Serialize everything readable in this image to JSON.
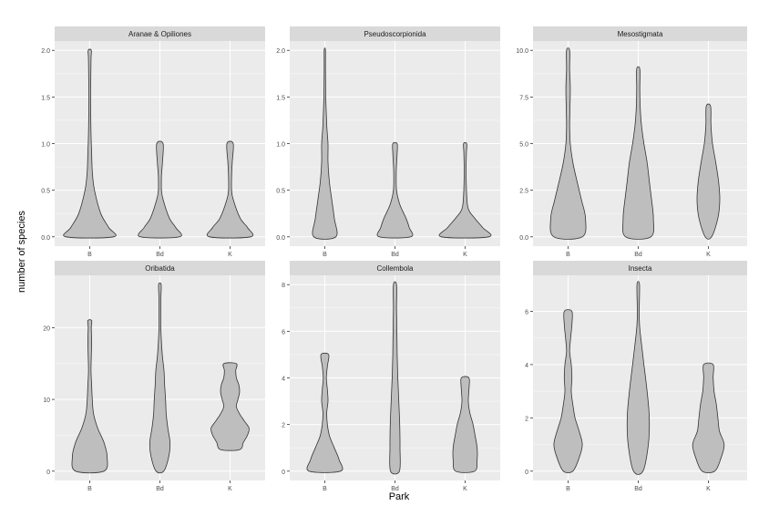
{
  "xlabel": "Park",
  "ylabel": "number of species",
  "colors": {
    "panel_bg": "#ebebeb",
    "strip_bg": "#d9d9d9",
    "grid": "#ffffff",
    "violin_fill": "#bebebe",
    "violin_stroke": "#333333",
    "tick_text": "#4d4d4d"
  },
  "chart_data": [
    {
      "type": "violin",
      "title": "Aranae & Opiliones",
      "categories": [
        "B",
        "Bd",
        "K"
      ],
      "ylim": [
        -0.1,
        2.1
      ],
      "yticks": [
        0,
        0.5,
        1,
        1.5,
        2
      ],
      "ytick_labels": [
        "0.0",
        "0.5",
        "1.0",
        "1.5",
        "2.0"
      ],
      "series": [
        {
          "name": "B",
          "profile": [
            [
              0,
              0.75
            ],
            [
              0.1,
              0.6
            ],
            [
              0.25,
              0.35
            ],
            [
              0.5,
              0.15
            ],
            [
              0.7,
              0.08
            ],
            [
              0.9,
              0.06
            ],
            [
              1.1,
              0.04
            ],
            [
              1.5,
              0.03
            ],
            [
              1.9,
              0.04
            ],
            [
              2,
              0.05
            ]
          ]
        },
        {
          "name": "Bd",
          "profile": [
            [
              0,
              0.62
            ],
            [
              0.1,
              0.5
            ],
            [
              0.2,
              0.3
            ],
            [
              0.4,
              0.1
            ],
            [
              0.5,
              0.05
            ],
            [
              0.65,
              0.05
            ],
            [
              0.8,
              0.08
            ],
            [
              1,
              0.1
            ]
          ]
        },
        {
          "name": "K",
          "profile": [
            [
              0,
              0.65
            ],
            [
              0.1,
              0.55
            ],
            [
              0.2,
              0.32
            ],
            [
              0.4,
              0.1
            ],
            [
              0.5,
              0.05
            ],
            [
              0.65,
              0.05
            ],
            [
              0.8,
              0.07
            ],
            [
              1,
              0.1
            ]
          ]
        }
      ]
    },
    {
      "type": "violin",
      "title": "Pseudoscorpionida",
      "categories": [
        "B",
        "Bd",
        "K"
      ],
      "ylim": [
        -0.1,
        2.1
      ],
      "yticks": [
        0,
        0.5,
        1,
        1.5,
        2
      ],
      "ytick_labels": [
        "0.0",
        "0.5",
        "1.0",
        "1.5",
        "2.0"
      ],
      "series": [
        {
          "name": "B",
          "profile": [
            [
              0,
              0.35
            ],
            [
              0.2,
              0.3
            ],
            [
              0.4,
              0.22
            ],
            [
              0.6,
              0.14
            ],
            [
              0.8,
              0.1
            ],
            [
              1,
              0.1
            ],
            [
              1.2,
              0.06
            ],
            [
              1.5,
              0.03
            ],
            [
              1.8,
              0.02
            ],
            [
              2,
              0.02
            ]
          ]
        },
        {
          "name": "Bd",
          "profile": [
            [
              0,
              0.5
            ],
            [
              0.1,
              0.45
            ],
            [
              0.2,
              0.35
            ],
            [
              0.35,
              0.15
            ],
            [
              0.5,
              0.05
            ],
            [
              0.7,
              0.04
            ],
            [
              0.9,
              0.07
            ],
            [
              1,
              0.07
            ]
          ]
        },
        {
          "name": "K",
          "profile": [
            [
              0,
              0.75
            ],
            [
              0.1,
              0.55
            ],
            [
              0.2,
              0.3
            ],
            [
              0.3,
              0.1
            ],
            [
              0.45,
              0.05
            ],
            [
              0.7,
              0.03
            ],
            [
              0.9,
              0.04
            ],
            [
              1,
              0.05
            ]
          ]
        }
      ]
    },
    {
      "type": "violin",
      "title": "Mesostigmata",
      "categories": [
        "B",
        "Bd",
        "K"
      ],
      "ylim": [
        -0.5,
        10.5
      ],
      "yticks": [
        0,
        2.5,
        5,
        7.5,
        10
      ],
      "ytick_labels": [
        "0.0",
        "2.5",
        "5.0",
        "7.5",
        "10.0"
      ],
      "series": [
        {
          "name": "B",
          "profile": [
            [
              0,
              0.45
            ],
            [
              1,
              0.55
            ],
            [
              2,
              0.42
            ],
            [
              3,
              0.28
            ],
            [
              4,
              0.15
            ],
            [
              5,
              0.07
            ],
            [
              6,
              0.05
            ],
            [
              7,
              0.06
            ],
            [
              8,
              0.07
            ],
            [
              9,
              0.05
            ],
            [
              10,
              0.05
            ]
          ]
        },
        {
          "name": "Bd",
          "profile": [
            [
              0,
              0.4
            ],
            [
              1,
              0.48
            ],
            [
              2,
              0.42
            ],
            [
              3,
              0.35
            ],
            [
              4,
              0.28
            ],
            [
              5,
              0.18
            ],
            [
              6,
              0.1
            ],
            [
              7,
              0.06
            ],
            [
              8,
              0.05
            ],
            [
              9,
              0.05
            ]
          ]
        },
        {
          "name": "K",
          "profile": [
            [
              0,
              0.1
            ],
            [
              1,
              0.3
            ],
            [
              2,
              0.36
            ],
            [
              3,
              0.32
            ],
            [
              4,
              0.23
            ],
            [
              5,
              0.13
            ],
            [
              6,
              0.08
            ],
            [
              7,
              0.07
            ]
          ]
        }
      ]
    },
    {
      "type": "violin",
      "title": "Oribatida",
      "categories": [
        "B",
        "Bd",
        "K"
      ],
      "ylim": [
        -1.3,
        27.3
      ],
      "yticks": [
        0,
        10,
        20
      ],
      "ytick_labels": [
        "0",
        "10",
        "20"
      ],
      "series": [
        {
          "name": "B",
          "profile": [
            [
              0,
              0.45
            ],
            [
              2,
              0.55
            ],
            [
              4,
              0.45
            ],
            [
              6,
              0.25
            ],
            [
              8,
              0.12
            ],
            [
              10,
              0.08
            ],
            [
              12,
              0.06
            ],
            [
              14,
              0.04
            ],
            [
              16,
              0.05
            ],
            [
              18,
              0.06
            ],
            [
              20,
              0.05
            ],
            [
              21,
              0.06
            ]
          ]
        },
        {
          "name": "Bd",
          "profile": [
            [
              0,
              0.12
            ],
            [
              2,
              0.28
            ],
            [
              4,
              0.32
            ],
            [
              6,
              0.25
            ],
            [
              8,
              0.2
            ],
            [
              10,
              0.18
            ],
            [
              12,
              0.15
            ],
            [
              14,
              0.13
            ],
            [
              16,
              0.08
            ],
            [
              18,
              0.05
            ],
            [
              20,
              0.03
            ],
            [
              22,
              0.03
            ],
            [
              24,
              0.03
            ],
            [
              26,
              0.04
            ]
          ]
        },
        {
          "name": "K",
          "profile": [
            [
              3,
              0.3
            ],
            [
              4,
              0.42
            ],
            [
              5,
              0.55
            ],
            [
              6,
              0.6
            ],
            [
              7,
              0.45
            ],
            [
              8,
              0.3
            ],
            [
              9,
              0.2
            ],
            [
              10,
              0.25
            ],
            [
              11,
              0.3
            ],
            [
              12,
              0.28
            ],
            [
              13,
              0.2
            ],
            [
              14,
              0.18
            ],
            [
              15,
              0.2
            ]
          ]
        }
      ]
    },
    {
      "type": "violin",
      "title": "Collembola",
      "categories": [
        "B",
        "Bd",
        "K"
      ],
      "ylim": [
        -0.4,
        8.4
      ],
      "yticks": [
        0,
        2,
        4,
        6,
        8
      ],
      "ytick_labels": [
        "0",
        "2",
        "4",
        "6",
        "8"
      ],
      "series": [
        {
          "name": "B",
          "profile": [
            [
              0,
              0.5
            ],
            [
              0.5,
              0.45
            ],
            [
              1,
              0.3
            ],
            [
              1.5,
              0.15
            ],
            [
              2,
              0.08
            ],
            [
              2.5,
              0.06
            ],
            [
              3,
              0.1
            ],
            [
              3.5,
              0.08
            ],
            [
              4,
              0.05
            ],
            [
              4.5,
              0.08
            ],
            [
              5,
              0.12
            ]
          ]
        },
        {
          "name": "Bd",
          "profile": [
            [
              0,
              0.14
            ],
            [
              1,
              0.16
            ],
            [
              2,
              0.15
            ],
            [
              3,
              0.12
            ],
            [
              4,
              0.09
            ],
            [
              5,
              0.07
            ],
            [
              6,
              0.06
            ],
            [
              7,
              0.05
            ],
            [
              8,
              0.05
            ]
          ]
        },
        {
          "name": "K",
          "profile": [
            [
              0,
              0.3
            ],
            [
              0.5,
              0.38
            ],
            [
              1,
              0.38
            ],
            [
              1.5,
              0.32
            ],
            [
              2,
              0.25
            ],
            [
              2.5,
              0.15
            ],
            [
              3,
              0.1
            ],
            [
              3.5,
              0.12
            ],
            [
              4,
              0.12
            ]
          ]
        }
      ]
    },
    {
      "type": "violin",
      "title": "Insecta",
      "categories": [
        "B",
        "Bd",
        "K"
      ],
      "ylim": [
        -0.35,
        7.35
      ],
      "yticks": [
        0,
        2,
        4,
        6
      ],
      "ytick_labels": [
        "0",
        "2",
        "4",
        "6"
      ],
      "series": [
        {
          "name": "B",
          "profile": [
            [
              0,
              0.15
            ],
            [
              0.5,
              0.35
            ],
            [
              1,
              0.45
            ],
            [
              1.5,
              0.35
            ],
            [
              2,
              0.22
            ],
            [
              2.5,
              0.15
            ],
            [
              3,
              0.1
            ],
            [
              3.5,
              0.12
            ],
            [
              4,
              0.1
            ],
            [
              4.5,
              0.05
            ],
            [
              5,
              0.08
            ],
            [
              5.5,
              0.12
            ],
            [
              6,
              0.12
            ]
          ]
        },
        {
          "name": "Bd",
          "profile": [
            [
              0,
              0.15
            ],
            [
              1,
              0.32
            ],
            [
              2,
              0.35
            ],
            [
              3,
              0.28
            ],
            [
              4,
              0.18
            ],
            [
              5,
              0.08
            ],
            [
              5.5,
              0.04
            ],
            [
              6,
              0.03
            ],
            [
              7,
              0.04
            ]
          ]
        },
        {
          "name": "K",
          "profile": [
            [
              0,
              0.2
            ],
            [
              0.5,
              0.4
            ],
            [
              1,
              0.5
            ],
            [
              1.5,
              0.35
            ],
            [
              2,
              0.3
            ],
            [
              2.5,
              0.25
            ],
            [
              3,
              0.18
            ],
            [
              3.5,
              0.15
            ],
            [
              4,
              0.15
            ]
          ]
        }
      ]
    }
  ]
}
